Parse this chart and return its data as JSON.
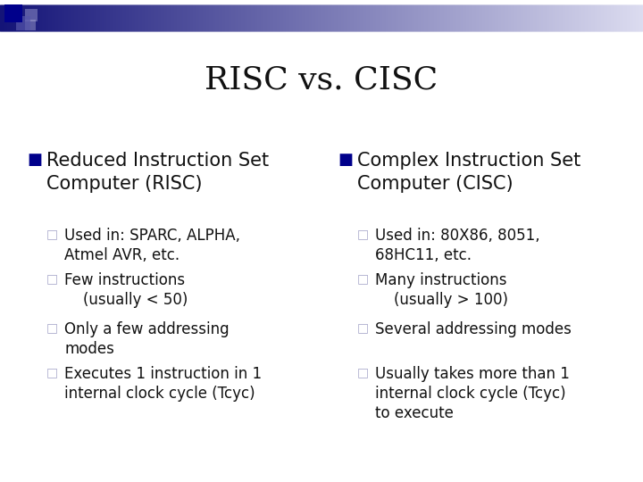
{
  "title": "RISC vs. CISC",
  "title_fontsize": 26,
  "background_color": "#ffffff",
  "left_column": {
    "bullet_color": "#00008B",
    "heading": "Reduced Instruction Set\nComputer (RISC)",
    "heading_fontsize": 15,
    "sub_bullet_color": "#aaaacc",
    "sub_items": [
      "Used in: SPARC, ALPHA,\nAtmel AVR, etc.",
      "Few instructions\n    (usually < 50)",
      "Only a few addressing\nmodes",
      "Executes 1 instruction in 1\ninternal clock cycle (Tcyc)"
    ],
    "sub_fontsize": 12
  },
  "right_column": {
    "bullet_color": "#00008B",
    "heading": "Complex Instruction Set\nComputer (CISC)",
    "heading_fontsize": 15,
    "sub_bullet_color": "#aaaacc",
    "sub_items": [
      "Used in: 80X86, 8051,\n68HC11, etc.",
      "Many instructions\n    (usually > 100)",
      "Several addressing modes",
      "Usually takes more than 1\ninternal clock cycle (Tcyc)\nto execute"
    ],
    "sub_fontsize": 12
  }
}
